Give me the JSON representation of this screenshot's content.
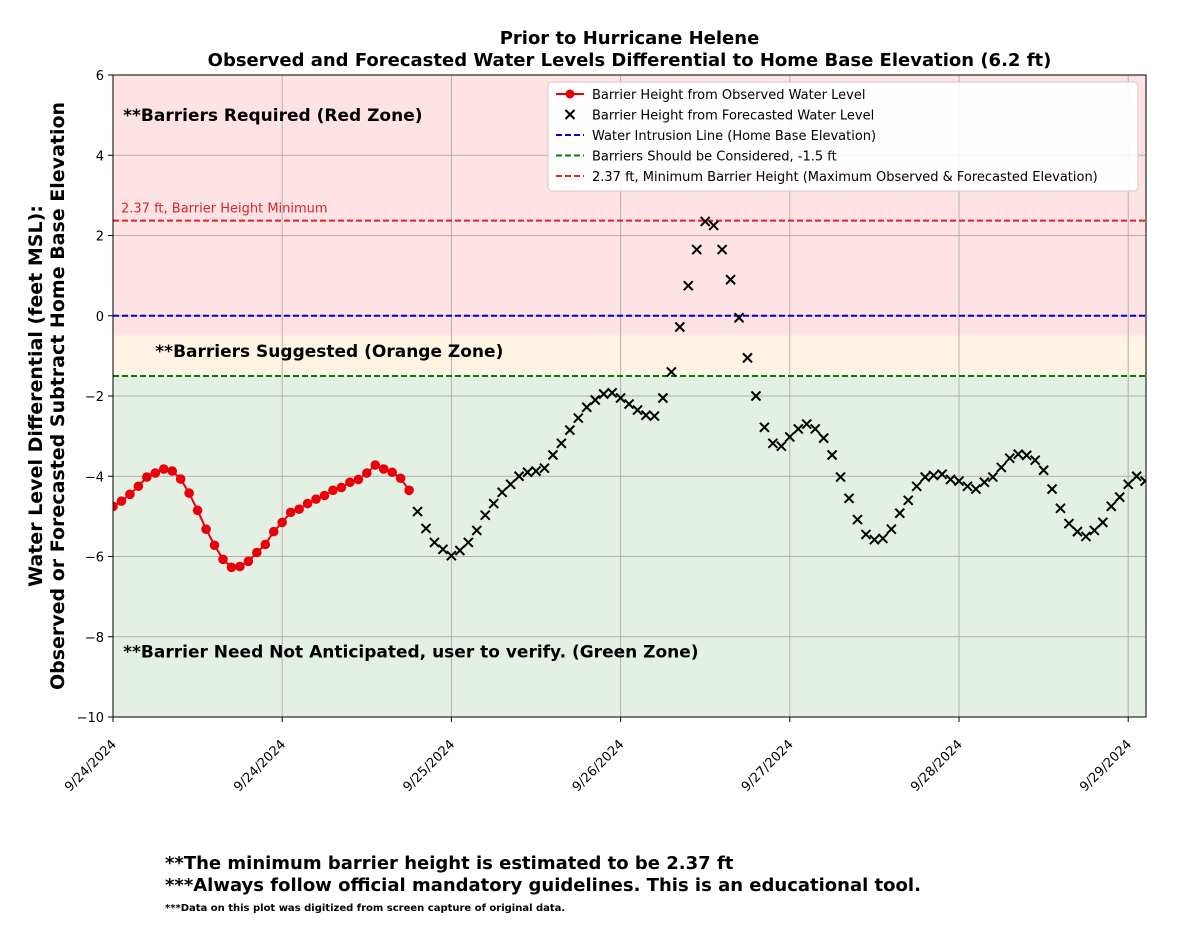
{
  "chart_data": {
    "type": "line",
    "title": "Prior to Hurricane Helene",
    "subtitle": "Observed and Forecasted Water Levels Differential to Home Base Elevation (6.2 ft)",
    "ylabel_line1": "Water Level Differential (feet MSL):",
    "ylabel_line2": "Observed or Forecasted Subtract Home Base Elevation",
    "xlabel": "",
    "ylim": [
      -10,
      6
    ],
    "xlim": [
      0,
      6.1
    ],
    "y_ticks": [
      -10,
      -8,
      -6,
      -4,
      -2,
      0,
      2,
      4,
      6
    ],
    "y_tick_labels": [
      "−10",
      "−8",
      "−6",
      "−4",
      "−2",
      "0",
      "2",
      "4",
      "6"
    ],
    "x_ticks": [
      {
        "pos": 0,
        "label": "9/24/2024"
      },
      {
        "pos": 1,
        "label": "9/24/2024"
      },
      {
        "pos": 2,
        "label": "9/25/2024"
      },
      {
        "pos": 3,
        "label": "9/26/2024"
      },
      {
        "pos": 4,
        "label": "9/27/2024"
      },
      {
        "pos": 5,
        "label": "9/28/2024"
      },
      {
        "pos": 6,
        "label": "9/29/2024"
      }
    ],
    "grid": true,
    "legend_position": "top-right",
    "zones": [
      {
        "name": "red",
        "from": -0.5,
        "to": 6,
        "color": "#ffe3e4",
        "label": "**Barriers Required (Red Zone)",
        "label_y": 5.0,
        "label_x": 0.06
      },
      {
        "name": "orange",
        "from": -1.5,
        "to": -0.5,
        "color": "#fff3e3",
        "label": "**Barriers Suggested (Orange Zone)",
        "label_y": -0.88,
        "label_x": 0.25
      },
      {
        "name": "green",
        "from": -10,
        "to": -1.5,
        "color": "#e5f0e4",
        "label": "**Barrier Need Not Anticipated, user to verify. (Green Zone)",
        "label_y": -8.37,
        "label_x": 0.06
      }
    ],
    "hlines": [
      {
        "y": 2.37,
        "color": "#d62728",
        "label": "2.37 ft, Barrier Height Minimum",
        "label_color": "#d62728"
      },
      {
        "y": 0,
        "color": "#0000cc"
      },
      {
        "y": -1.5,
        "color": "#008000"
      }
    ],
    "legend": [
      {
        "label": "Barrier Height from Observed Water Level",
        "marker": "line-dot",
        "color": "#e8000b"
      },
      {
        "label": "Barrier Height from Forecasted Water Level",
        "marker": "x",
        "color": "#000000"
      },
      {
        "label": "Water Intrusion Line (Home Base Elevation)",
        "marker": "dash",
        "color": "#0000cc"
      },
      {
        "label": "Barriers Should be Considered, -1.5 ft",
        "marker": "dash",
        "color": "#008000"
      },
      {
        "label": "2.37 ft, Minimum Barrier Height (Maximum Observed & Forecasted Elevation)",
        "marker": "dash",
        "color": "#d62728"
      }
    ],
    "series": [
      {
        "name": "Barrier Height from Observed Water Level",
        "style": "line-dot",
        "color": "#e8000b",
        "x": [
          0.0,
          0.05,
          0.1,
          0.15,
          0.2,
          0.25,
          0.3,
          0.35,
          0.4,
          0.45,
          0.5,
          0.55,
          0.6,
          0.65,
          0.7,
          0.75,
          0.8,
          0.85,
          0.9,
          0.95,
          1.0,
          1.05,
          1.1,
          1.15,
          1.2,
          1.25,
          1.3,
          1.35,
          1.4,
          1.45,
          1.5,
          1.55,
          1.6,
          1.65,
          1.7,
          1.75
        ],
        "y": [
          -4.75,
          -4.62,
          -4.45,
          -4.25,
          -4.02,
          -3.92,
          -3.82,
          -3.87,
          -4.07,
          -4.42,
          -4.85,
          -5.32,
          -5.72,
          -6.07,
          -6.27,
          -6.25,
          -6.12,
          -5.9,
          -5.7,
          -5.38,
          -5.15,
          -4.9,
          -4.82,
          -4.68,
          -4.57,
          -4.48,
          -4.35,
          -4.28,
          -4.15,
          -4.08,
          -3.92,
          -3.72,
          -3.82,
          -3.9,
          -4.05,
          -4.35
        ]
      },
      {
        "name": "Barrier Height from Forecasted Water Level",
        "style": "x",
        "color": "#000000",
        "x": [
          1.8,
          1.85,
          1.9,
          1.95,
          2.0,
          2.05,
          2.1,
          2.15,
          2.2,
          2.25,
          2.3,
          2.35,
          2.4,
          2.45,
          2.5,
          2.55,
          2.6,
          2.65,
          2.7,
          2.75,
          2.8,
          2.85,
          2.9,
          2.95,
          3.0,
          3.05,
          3.1,
          3.15,
          3.2,
          3.25,
          3.3,
          3.35,
          3.4,
          3.45,
          3.5,
          3.55,
          3.6,
          3.65,
          3.7,
          3.75,
          3.8,
          3.85,
          3.9,
          3.95,
          4.0,
          4.05,
          4.1,
          4.15,
          4.2,
          4.25,
          4.3,
          4.35,
          4.4,
          4.45,
          4.5,
          4.55,
          4.6,
          4.65,
          4.7,
          4.75,
          4.8,
          4.85,
          4.9,
          4.95,
          5.0,
          5.05,
          5.1,
          5.15,
          5.2,
          5.25,
          5.3,
          5.35,
          5.4,
          5.45,
          5.5,
          5.55,
          5.6,
          5.65,
          5.7,
          5.75,
          5.8,
          5.85,
          5.9,
          5.95,
          6.0,
          6.05,
          6.1
        ],
        "y": [
          -4.88,
          -5.3,
          -5.65,
          -5.82,
          -5.98,
          -5.85,
          -5.65,
          -5.35,
          -4.97,
          -4.68,
          -4.4,
          -4.2,
          -4.0,
          -3.9,
          -3.87,
          -3.8,
          -3.47,
          -3.18,
          -2.85,
          -2.55,
          -2.28,
          -2.1,
          -1.95,
          -1.92,
          -2.05,
          -2.2,
          -2.35,
          -2.48,
          -2.5,
          -2.05,
          -1.4,
          -0.28,
          0.75,
          1.65,
          2.35,
          2.25,
          1.65,
          0.9,
          -0.05,
          -1.05,
          -2.0,
          -2.78,
          -3.18,
          -3.25,
          -3.02,
          -2.82,
          -2.7,
          -2.82,
          -3.05,
          -3.47,
          -4.02,
          -4.55,
          -5.08,
          -5.45,
          -5.58,
          -5.55,
          -5.32,
          -4.92,
          -4.6,
          -4.25,
          -4.02,
          -3.98,
          -3.95,
          -4.08,
          -4.12,
          -4.25,
          -4.32,
          -4.15,
          -4.02,
          -3.78,
          -3.55,
          -3.45,
          -3.48,
          -3.6,
          -3.85,
          -4.32,
          -4.8,
          -5.18,
          -5.38,
          -5.5,
          -5.35,
          -5.15,
          -4.75,
          -4.52,
          -4.2,
          -4.0,
          -4.12
        ]
      }
    ]
  },
  "footer": {
    "line1": "**The minimum barrier height is estimated to be 2.37 ft",
    "line2": "***Always follow official mandatory guidelines. This is an educational tool.",
    "line3": "***Data on this plot was digitized from screen capture of original data."
  }
}
